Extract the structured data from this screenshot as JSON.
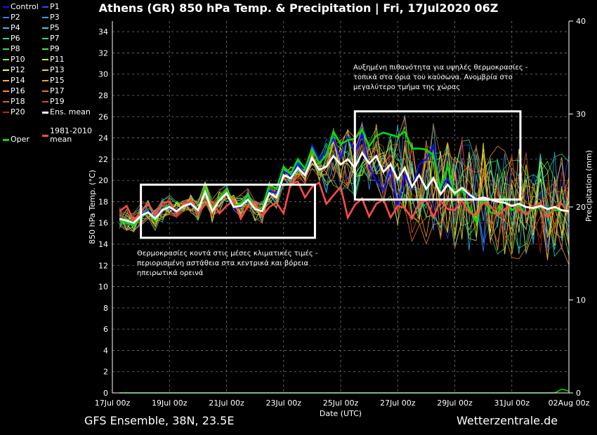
{
  "title": "Athens  (GR)  850 hPa Temp. & Precipitation | Fri, 17Jul2020 06Z",
  "footer": {
    "left": "GFS Ensemble, 38N, 23.5E",
    "right": "Wetterzentrale.de"
  },
  "colors": {
    "background": "#000000",
    "ens_mean": "#ffffff",
    "climate_mean": "#ff4a4a",
    "oper": "#00e000",
    "control": "#1010ff",
    "box": "#ffffff"
  },
  "legend": [
    {
      "label": "Control",
      "color": "#1010ff"
    },
    {
      "label": "P1",
      "color": "#2050ff"
    },
    {
      "label": "P2",
      "color": "#3f7fff"
    },
    {
      "label": "P3",
      "color": "#30a0ff"
    },
    {
      "label": "P4",
      "color": "#20c8ff"
    },
    {
      "label": "P5",
      "color": "#20e0e0"
    },
    {
      "label": "P6",
      "color": "#20e0a0"
    },
    {
      "label": "P7",
      "color": "#20e080"
    },
    {
      "label": "P8",
      "color": "#30e060"
    },
    {
      "label": "P9",
      "color": "#40f040"
    },
    {
      "label": "P10",
      "color": "#a0f020"
    },
    {
      "label": "P11",
      "color": "#e0f000"
    },
    {
      "label": "P12",
      "color": "#ffff30"
    },
    {
      "label": "P13",
      "color": "#ffd020"
    },
    {
      "label": "P14",
      "color": "#ffb040"
    },
    {
      "label": "P15",
      "color": "#ffa020"
    },
    {
      "label": "P16",
      "color": "#ff9020"
    },
    {
      "label": "P17",
      "color": "#ff7020"
    },
    {
      "label": "P18",
      "color": "#e06030"
    },
    {
      "label": "P19",
      "color": "#d05030"
    },
    {
      "label": "P20",
      "color": "#c02020"
    },
    {
      "label": "Ens. mean",
      "color": "#ffffff"
    },
    {
      "label": "1981-2010\nmean",
      "color": "#ff4a4a"
    },
    {
      "label": "Oper",
      "color": "#00e000"
    }
  ],
  "annotations": {
    "left": "Θερμοκρασίες κοντά στις μέσες κλιματικές τιμές -\nπεριορισμένη αστάθεια στα κεντρικά και βόρεια\nηπειρωτικά ορεινά",
    "right": "Αυξημένη πιθανότητα για υψηλές θερμοκρασίες -\nτοπικά στα όρια του καύσωνα. Ανομβρία στο\nμεγαλύτερο τμήμα της χώρας"
  },
  "chart_data": {
    "type": "line",
    "xlabel": "Date (UTC)",
    "ylabel": "850 hPa Temp. (°C)",
    "y2label": "Precipitation (mm)",
    "ylim": [
      0,
      35
    ],
    "y2lim": [
      0,
      40
    ],
    "x_ticks": [
      "17Jul 00z",
      "19Jul 00z",
      "21Jul 00z",
      "23Jul 00z",
      "25Jul 00z",
      "27Jul 00z",
      "29Jul 00z",
      "31Jul 00z",
      "02Aug 00z"
    ],
    "y_ticks": [
      0,
      2,
      4,
      6,
      8,
      10,
      12,
      14,
      16,
      18,
      20,
      22,
      24,
      26,
      28,
      30,
      32,
      34
    ],
    "y2_ticks": [
      0,
      10,
      20,
      30,
      40
    ],
    "x_days": [
      0.25,
      0.5,
      0.75,
      1,
      1.25,
      1.5,
      1.75,
      2,
      2.25,
      2.5,
      2.75,
      3,
      3.25,
      3.5,
      3.75,
      4,
      4.25,
      4.5,
      4.75,
      5,
      5.25,
      5.5,
      5.75,
      6,
      6.25,
      6.5,
      6.75,
      7,
      7.25,
      7.5,
      7.75,
      8,
      8.25,
      8.5,
      8.75,
      9,
      9.25,
      9.5,
      9.75,
      10,
      10.25,
      10.5,
      10.75,
      11,
      11.25,
      11.5,
      11.75,
      12,
      12.25,
      12.5,
      12.75,
      13,
      13.25,
      13.5,
      13.75,
      14,
      14.25,
      14.5,
      14.75,
      15,
      15.25,
      15.5,
      15.75,
      16
    ],
    "series": [
      {
        "name": "Ens. mean",
        "values": [
          16.4,
          16.2,
          16,
          16.7,
          17,
          16.4,
          17.2,
          17.5,
          17.1,
          17.6,
          17.8,
          17.2,
          18.9,
          17.1,
          18.1,
          18.8,
          17.5,
          17.6,
          18.2,
          17.3,
          17.1,
          18.8,
          18.4,
          20.5,
          20.2,
          21.2,
          20.5,
          22.1,
          21,
          21.3,
          22.3,
          21.5,
          22,
          21.2,
          22.6,
          21.6,
          22.3,
          20.8,
          21.5,
          20.1,
          21.2,
          19.4,
          20.5,
          19.2,
          20.2,
          18.7,
          19.6,
          18.8,
          19.3,
          18.7,
          18.2,
          18.4,
          18.2,
          18,
          17.9,
          17.6,
          17.8,
          17.5,
          17.4,
          17.6,
          17.3,
          17.5,
          17.2,
          17.1
        ]
      },
      {
        "name": "1981-2010\nmean",
        "values": [
          17.1,
          17.6,
          16.2,
          17.1,
          17.8,
          16.8,
          17.9,
          18,
          16.9,
          17.8,
          18.1,
          17,
          17.7,
          18,
          16.9,
          17.6,
          18.1,
          16.4,
          17.6,
          18,
          16.6,
          17.5,
          17.9,
          16.9,
          19.7,
          19.9,
          18.4,
          19.4,
          19.8,
          17.8,
          18.6,
          19.4,
          16.5,
          17.7,
          18.3,
          16.6,
          17.8,
          18.2,
          16.5,
          17.6,
          17.4,
          16.4,
          17.9,
          18.1,
          16.5,
          18.1,
          17.3,
          17.2,
          18.1,
          17,
          16.7,
          17.9,
          17.6,
          16.7,
          17.3,
          17.7,
          17.3,
          16.8,
          17.5,
          17.9,
          16.5,
          17.5,
          17.8,
          16.8
        ]
      },
      {
        "name": "Oper",
        "values": [
          16.2,
          16,
          15.8,
          16.5,
          17,
          16.2,
          17.3,
          17.6,
          17,
          17.8,
          18,
          17.1,
          19.3,
          17.2,
          18.4,
          19.1,
          17.6,
          17.8,
          18.6,
          17.3,
          17.4,
          19.6,
          19.2,
          21.3,
          20.6,
          22,
          21.1,
          23,
          21.6,
          22.4,
          24.6,
          23.4,
          23.8,
          23.9,
          24.8,
          23.2,
          24.2,
          24.5,
          24.3,
          24.1,
          24.6,
          23,
          23,
          22.9,
          22.4,
          19.3,
          21.3,
          18.6,
          19.2,
          17.4,
          16.1,
          18.4,
          17,
          16.8,
          18.4,
          17.2,
          17.6,
          16.8,
          17.3,
          17.5,
          16.8,
          17.2,
          17.2,
          16.9
        ]
      },
      {
        "name": "Control",
        "values": [
          16.5,
          16.1,
          15.9,
          16.8,
          17.1,
          16.4,
          17.4,
          17.4,
          17,
          17.6,
          17.7,
          17.2,
          18.8,
          17.2,
          18.1,
          18.9,
          17.4,
          17.5,
          18.3,
          17.3,
          17.2,
          19,
          18.8,
          20.9,
          20.4,
          21.6,
          20.5,
          23.3,
          22,
          22.7,
          23.9,
          22.1,
          24.1,
          22.6,
          24.4,
          21.3,
          19.9,
          19.1,
          21,
          17.5,
          20.5,
          19.1,
          21.5,
          22,
          23.3,
          19.2,
          20.2,
          18.6,
          19.3,
          18.5,
          18.1,
          18.5,
          18.2,
          18,
          17.9,
          17.6,
          17.8,
          17.5,
          17.4,
          17.6,
          17.3,
          17.5,
          17.2,
          17.1
        ]
      }
    ],
    "precip": {
      "name": "Precipitation",
      "values": [
        0,
        0,
        0,
        0,
        0,
        0,
        0,
        0,
        0,
        0,
        0,
        0,
        0,
        0,
        0,
        0,
        0,
        0,
        0,
        0,
        0,
        0,
        0,
        0,
        0,
        0,
        0,
        0,
        0,
        0,
        0,
        0,
        0,
        0,
        0,
        0,
        0,
        0,
        0,
        0,
        0,
        0,
        0,
        0,
        0,
        0,
        0,
        0,
        0,
        0,
        0,
        0,
        0,
        0,
        0,
        0,
        0,
        0,
        0,
        0,
        0,
        0,
        0.4,
        0.2
      ]
    },
    "boxes": [
      {
        "x": [
          1,
          7.1
        ],
        "y": [
          14.6,
          19.6
        ]
      },
      {
        "x": [
          8.5,
          14.3
        ],
        "y": [
          18.2,
          26.5
        ]
      }
    ],
    "grid": true,
    "legend_position": "left"
  }
}
